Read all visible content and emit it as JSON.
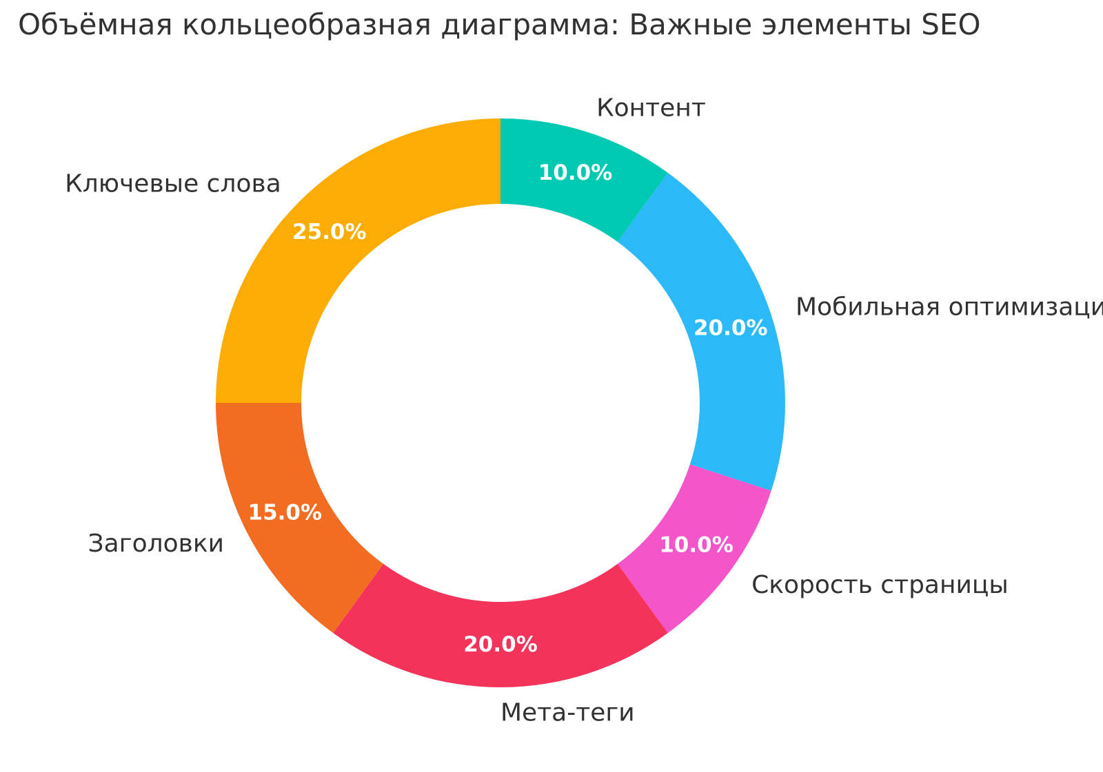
{
  "title": "Объёмная кольцеобразная диаграмма: Важные элементы SEO",
  "chart_data": {
    "type": "pie",
    "subtype": "donut",
    "title": "Объёмная кольцеобразная диаграмма: Важные элементы SEO",
    "labels": [
      "Контент",
      "Мобильная оптимизация",
      "Скорость страницы",
      "Мета-теги",
      "Заголовки",
      "Ключевые слова"
    ],
    "values": [
      10,
      20,
      10,
      20,
      15,
      25
    ],
    "percent_labels": [
      "10.0%",
      "20.0%",
      "10.0%",
      "20.0%",
      "15.0%",
      "25.0%"
    ],
    "colors": [
      "#00C9B1",
      "#2BB9F8",
      "#F455C8",
      "#F4335A",
      "#F26C21",
      "#FBAC05"
    ],
    "hole": 0.7,
    "direction": "clockwise",
    "start_angle_deg": 0,
    "label_position": "outside",
    "percent_position": "inside",
    "legend": "none",
    "background": "#ffffff",
    "label_text_color": "#323232",
    "percent_text_color": "#ffffff"
  }
}
